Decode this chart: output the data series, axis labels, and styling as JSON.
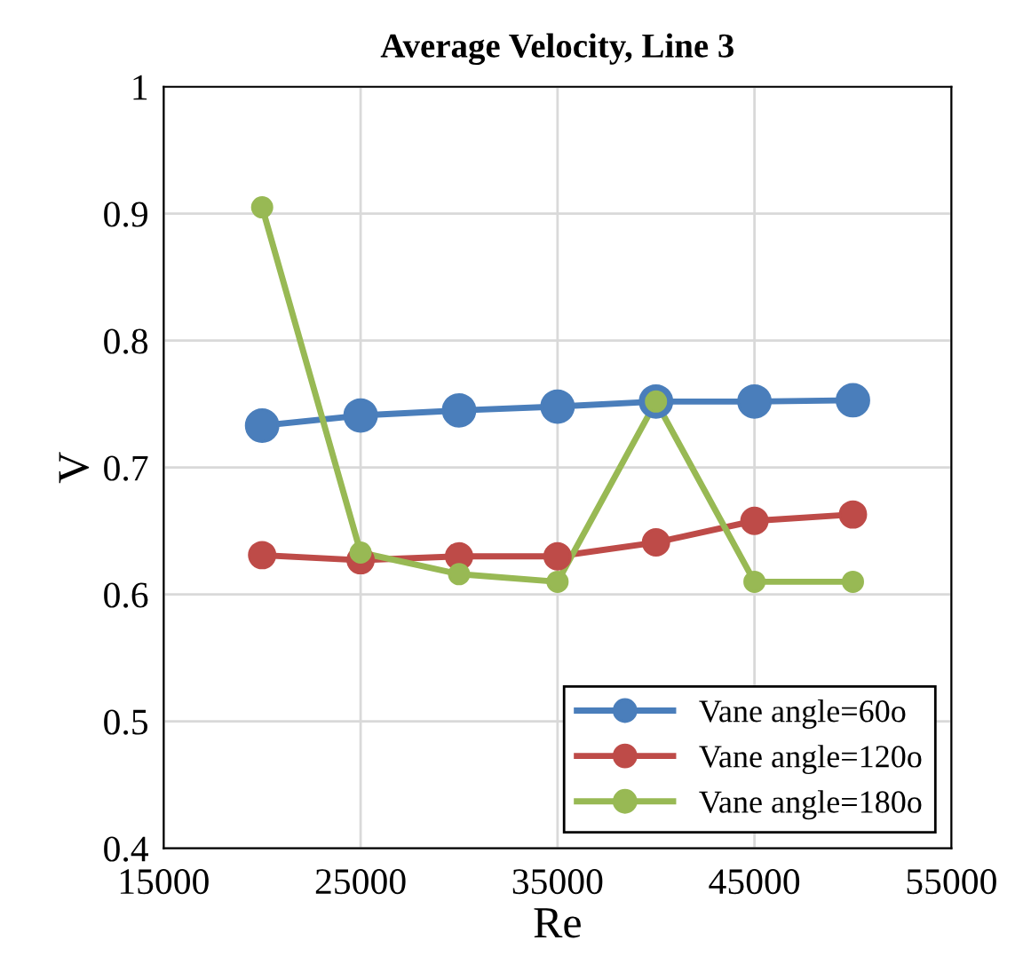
{
  "chart_data": {
    "type": "line",
    "title": "Average Velocity, Line 3",
    "xlabel": "Re",
    "ylabel": "V",
    "x": [
      20000,
      25000,
      30000,
      35000,
      40000,
      45000,
      50000
    ],
    "series": [
      {
        "name": "Vane angle=60o",
        "color": "#4a7ebb",
        "values": [
          0.733,
          0.741,
          0.745,
          0.748,
          0.752,
          0.752,
          0.753
        ]
      },
      {
        "name": "Vane angle=120o",
        "color": "#be4b48",
        "values": [
          0.631,
          0.627,
          0.63,
          0.63,
          0.641,
          0.658,
          0.663
        ]
      },
      {
        "name": "Vane angle=180o",
        "color": "#98b954",
        "values": [
          0.905,
          0.633,
          0.616,
          0.61,
          0.752,
          0.61,
          0.61
        ]
      }
    ],
    "xlim": [
      15000,
      55000
    ],
    "xticks": [
      15000,
      25000,
      35000,
      45000,
      55000
    ],
    "ylim": [
      0.4,
      1
    ],
    "yticks": [
      0.4,
      0.5,
      0.6,
      0.7,
      0.8,
      0.9,
      1
    ],
    "grid": true,
    "legend": "bottom right",
    "marker": "circle",
    "line_style": "solid"
  }
}
